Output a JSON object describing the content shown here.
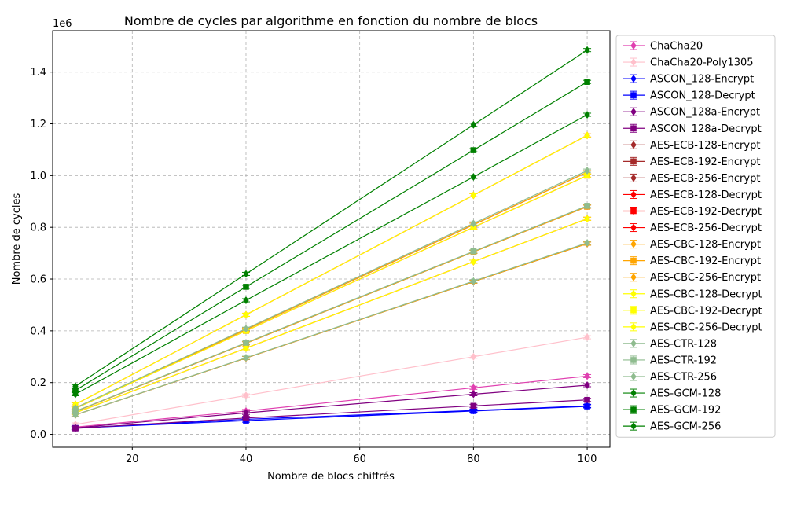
{
  "chart_data": {
    "type": "line",
    "title": "Nombre de cycles par algorithme en fonction du nombre de blocs",
    "xlabel": "Nombre de blocs chiffrés",
    "ylabel": "Nombre de cycles",
    "y_offset_label": "1e6",
    "xlim": [
      6,
      104
    ],
    "ylim": [
      -0.05,
      1.56
    ],
    "x_ticks": [
      20,
      40,
      60,
      80,
      100
    ],
    "x_tick_labels": [
      "20",
      "40",
      "60",
      "80",
      "100"
    ],
    "y_ticks": [
      0.0,
      0.2,
      0.4,
      0.6,
      0.8,
      1.0,
      1.2,
      1.4
    ],
    "y_tick_labels": [
      "0.0",
      "0.2",
      "0.4",
      "0.6",
      "0.8",
      "1.0",
      "1.2",
      "1.4"
    ],
    "grid": true,
    "legend_position": "right, outside plot",
    "x": [
      10,
      40,
      80,
      100
    ],
    "series": [
      {
        "name": "ChaCha20",
        "color": "#e040b0",
        "marker": "diamond",
        "values": [
          0.028,
          0.09,
          0.18,
          0.225
        ]
      },
      {
        "name": "ChaCha20-Poly1305",
        "color": "#ffc0cb",
        "marker": "diamond",
        "values": [
          0.038,
          0.15,
          0.3,
          0.375
        ]
      },
      {
        "name": "ASCON_128-Encrypt",
        "color": "#0000ff",
        "marker": "diamond",
        "values": [
          0.024,
          0.058,
          0.092,
          0.11
        ]
      },
      {
        "name": "ASCON_128-Decrypt",
        "color": "#0000ff",
        "marker": "square",
        "values": [
          0.024,
          0.053,
          0.09,
          0.108
        ]
      },
      {
        "name": "ASCON_128a-Encrypt",
        "color": "#800080",
        "marker": "diamond",
        "values": [
          0.025,
          0.083,
          0.155,
          0.19
        ]
      },
      {
        "name": "ASCON_128a-Decrypt",
        "color": "#800080",
        "marker": "square",
        "values": [
          0.023,
          0.063,
          0.11,
          0.133
        ]
      },
      {
        "name": "AES-ECB-128-Encrypt",
        "color": "#a52a2a",
        "marker": "diamond",
        "values": [
          0.075,
          0.295,
          0.59,
          0.737
        ]
      },
      {
        "name": "AES-ECB-192-Encrypt",
        "color": "#a52a2a",
        "marker": "square",
        "values": [
          0.088,
          0.352,
          0.705,
          0.88
        ]
      },
      {
        "name": "AES-ECB-256-Encrypt",
        "color": "#a52a2a",
        "marker": "diamond",
        "values": [
          0.102,
          0.405,
          0.81,
          1.013
        ]
      },
      {
        "name": "AES-ECB-128-Decrypt",
        "color": "#ff0000",
        "marker": "diamond",
        "values": [
          0.083,
          0.333,
          0.667,
          0.833
        ]
      },
      {
        "name": "AES-ECB-192-Decrypt",
        "color": "#ff0000",
        "marker": "square",
        "values": [
          0.1,
          0.4,
          0.8,
          1.0
        ]
      },
      {
        "name": "AES-ECB-256-Decrypt",
        "color": "#ff0000",
        "marker": "diamond",
        "values": [
          0.116,
          0.462,
          0.924,
          1.155
        ]
      },
      {
        "name": "AES-CBC-128-Encrypt",
        "color": "#ffa500",
        "marker": "diamond",
        "values": [
          0.075,
          0.295,
          0.59,
          0.737
        ]
      },
      {
        "name": "AES-CBC-192-Encrypt",
        "color": "#ffa500",
        "marker": "square",
        "values": [
          0.088,
          0.352,
          0.705,
          0.88
        ]
      },
      {
        "name": "AES-CBC-256-Encrypt",
        "color": "#ffa500",
        "marker": "diamond",
        "values": [
          0.102,
          0.405,
          0.81,
          1.013
        ]
      },
      {
        "name": "AES-CBC-128-Decrypt",
        "color": "#ffff00",
        "marker": "diamond",
        "values": [
          0.083,
          0.333,
          0.667,
          0.833
        ]
      },
      {
        "name": "AES-CBC-192-Decrypt",
        "color": "#ffff00",
        "marker": "square",
        "values": [
          0.1,
          0.4,
          0.8,
          1.0
        ]
      },
      {
        "name": "AES-CBC-256-Decrypt",
        "color": "#ffff00",
        "marker": "diamond",
        "values": [
          0.116,
          0.462,
          0.924,
          1.155
        ]
      },
      {
        "name": "AES-CTR-128",
        "color": "#8fbc8f",
        "marker": "diamond",
        "values": [
          0.075,
          0.296,
          0.592,
          0.74
        ]
      },
      {
        "name": "AES-CTR-192",
        "color": "#8fbc8f",
        "marker": "square",
        "values": [
          0.089,
          0.354,
          0.707,
          0.883
        ]
      },
      {
        "name": "AES-CTR-256",
        "color": "#8fbc8f",
        "marker": "diamond",
        "values": [
          0.102,
          0.408,
          0.815,
          1.019
        ]
      },
      {
        "name": "AES-GCM-128",
        "color": "#008000",
        "marker": "diamond",
        "values": [
          0.155,
          0.518,
          0.995,
          1.235
        ]
      },
      {
        "name": "AES-GCM-192",
        "color": "#008000",
        "marker": "square",
        "values": [
          0.17,
          0.57,
          1.098,
          1.362
        ]
      },
      {
        "name": "AES-GCM-256",
        "color": "#008000",
        "marker": "diamond",
        "values": [
          0.186,
          0.62,
          1.196,
          1.485
        ]
      }
    ]
  }
}
